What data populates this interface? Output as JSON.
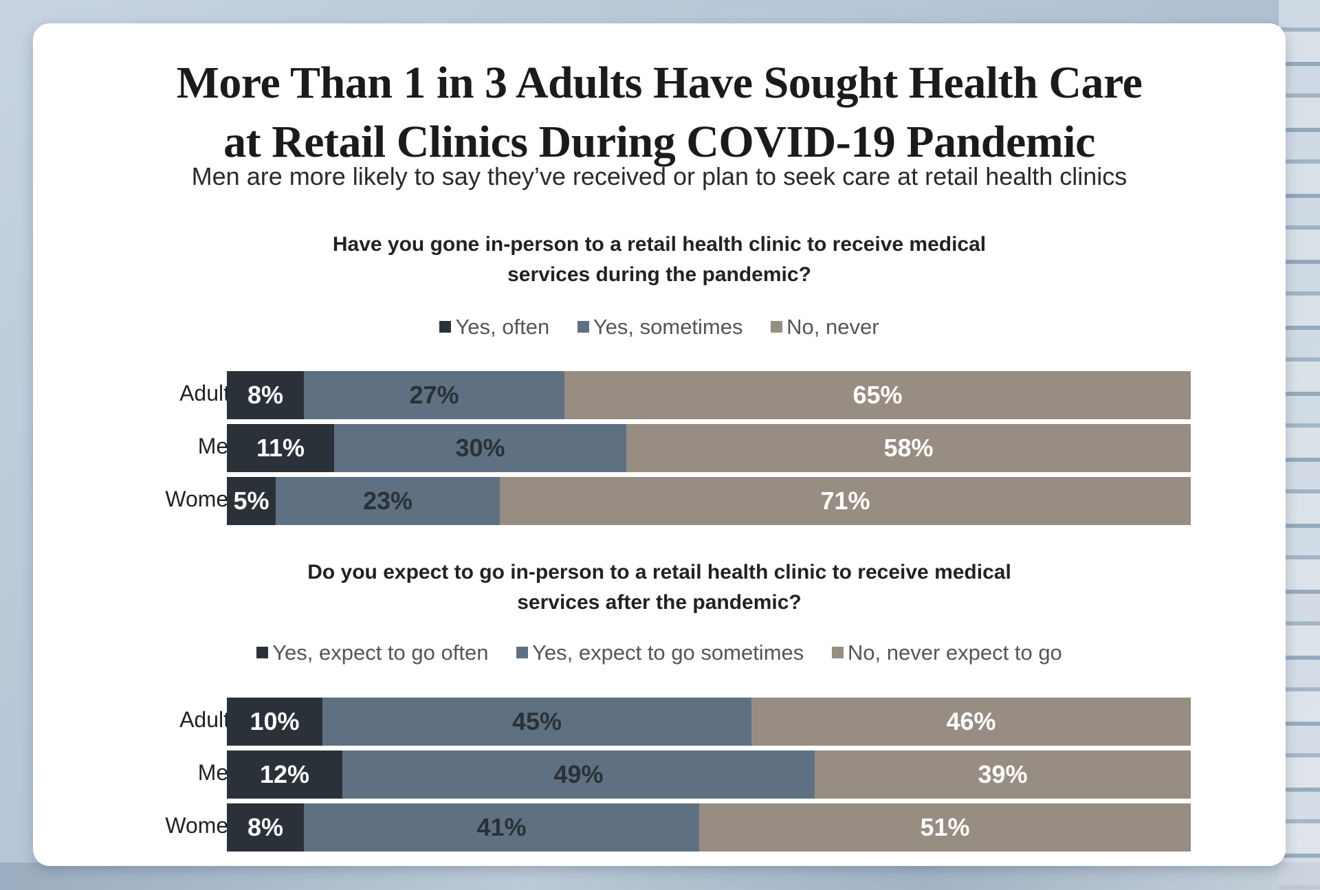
{
  "title_line1": "More Than 1 in 3 Adults Have Sought Health Care",
  "title_line2": "at Retail Clinics During COVID-19 Pandemic",
  "subtitle": "Men are more likely to say they’ve received or plan to seek care at retail health clinics",
  "colors": {
    "often": "#2b3138",
    "sometimes": "#5f7082",
    "never": "#988d82"
  },
  "chart_data": [
    {
      "type": "bar",
      "orientation": "horizontal-stacked",
      "title_line1": "Have you gone in-person to a retail health clinic to receive medical",
      "title_line2": "services during the pandemic?",
      "categories": [
        "Adults",
        "Men",
        "Women"
      ],
      "series": [
        {
          "name": "Yes, often",
          "values": [
            8,
            11,
            5
          ],
          "labels": [
            "8%",
            "11%",
            "5%"
          ]
        },
        {
          "name": "Yes, sometimes",
          "values": [
            27,
            30,
            23
          ],
          "labels": [
            "27%",
            "30%",
            "23%"
          ]
        },
        {
          "name": "No, never",
          "values": [
            65,
            58,
            71
          ],
          "labels": [
            "65%",
            "58%",
            "71%"
          ]
        }
      ],
      "legend": "top",
      "grid": false
    },
    {
      "type": "bar",
      "orientation": "horizontal-stacked",
      "title_line1": "Do you expect to go in-person to a retail health clinic to receive medical",
      "title_line2": "services after the pandemic?",
      "categories": [
        "Adults",
        "Men",
        "Women"
      ],
      "series": [
        {
          "name": "Yes, expect to go often",
          "values": [
            10,
            12,
            8
          ],
          "labels": [
            "10%",
            "12%",
            "8%"
          ]
        },
        {
          "name": "Yes, expect to go sometimes",
          "values": [
            45,
            49,
            41
          ],
          "labels": [
            "45%",
            "49%",
            "41%"
          ]
        },
        {
          "name": "No, never expect to go",
          "values": [
            46,
            39,
            51
          ],
          "labels": [
            "46%",
            "39%",
            "51%"
          ]
        }
      ],
      "legend": "top",
      "grid": false
    }
  ]
}
